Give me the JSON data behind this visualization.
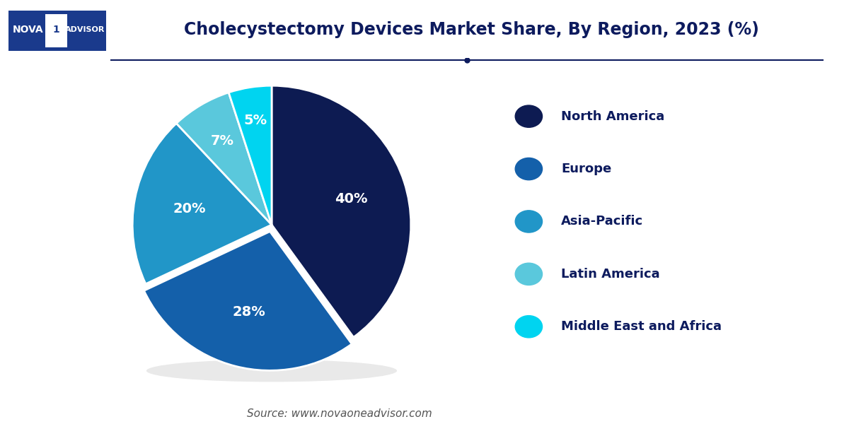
{
  "title": "Cholecystectomy Devices Market Share, By Region, 2023 (%)",
  "labels": [
    "North America",
    "Europe",
    "Asia-Pacific",
    "Latin America",
    "Middle East and Africa"
  ],
  "values": [
    40,
    28,
    20,
    7,
    5
  ],
  "colors": [
    "#0d1b52",
    "#1460aa",
    "#2196c8",
    "#5ac8dc",
    "#00d4f0"
  ],
  "pct_labels": [
    "40%",
    "28%",
    "20%",
    "7%",
    "5%"
  ],
  "legend_text_color": "#0d1b5e",
  "title_color": "#0d1b5e",
  "source_text": "Source: www.novaoneadvisor.com",
  "bg_color": "#ffffff",
  "label_color": "#ffffff",
  "startangle": 90,
  "explode": [
    0,
    0.05,
    0,
    0,
    0
  ]
}
